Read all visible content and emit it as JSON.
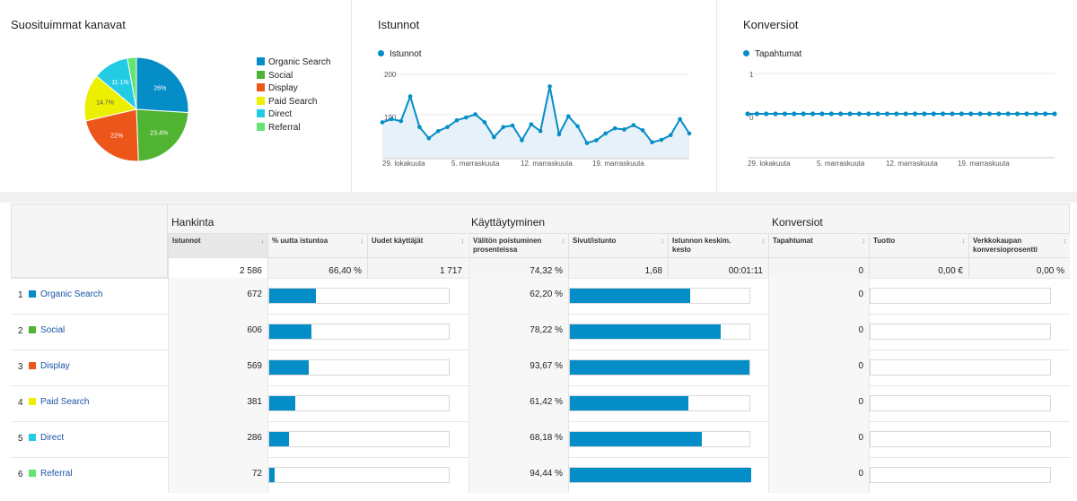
{
  "colors": {
    "organic": "#058dc7",
    "social": "#50b432",
    "display": "#ed561b",
    "paid": "#edef00",
    "direct": "#24cbe5",
    "referral": "#64e572",
    "accent": "#058dc7"
  },
  "top_channels": {
    "title": "Suosituimmat kanavat",
    "legend": [
      {
        "label": "Organic Search",
        "color": "#058dc7"
      },
      {
        "label": "Social",
        "color": "#50b432"
      },
      {
        "label": "Display",
        "color": "#ed561b"
      },
      {
        "label": "Paid Search",
        "color": "#edef00"
      },
      {
        "label": "Direct",
        "color": "#24cbe5"
      },
      {
        "label": "Referral",
        "color": "#64e572"
      }
    ]
  },
  "sessions_panel": {
    "title": "Istunnot",
    "legend": "Istunnot",
    "y_ticks": [
      "200",
      "100"
    ],
    "x_ticks": [
      "29. lokakuuta",
      "5. marraskuuta",
      "12. marraskuuta",
      "19. marraskuuta"
    ]
  },
  "conversions_panel": {
    "title": "Konversiot",
    "legend": "Tapahtumat",
    "y_ticks": [
      "1",
      "0"
    ],
    "x_ticks": [
      "29. lokakuuta",
      "5. marraskuuta",
      "12. marraskuuta",
      "19. marraskuuta"
    ]
  },
  "chart_data": [
    {
      "type": "pie",
      "categories": [
        "Organic Search",
        "Social",
        "Display",
        "Paid Search",
        "Direct",
        "Referral"
      ],
      "values": [
        26.0,
        23.4,
        22.0,
        14.7,
        11.1,
        2.8
      ],
      "labels": [
        "26%",
        "23.4%",
        "22%",
        "14.7%",
        "11.1%",
        ""
      ]
    },
    {
      "type": "line",
      "series": [
        {
          "name": "Istunnot",
          "values": [
            100,
            108,
            103,
            165,
            88,
            60,
            78,
            88,
            105,
            112,
            120,
            100,
            63,
            88,
            92,
            55,
            95,
            78,
            190,
            70,
            115,
            90,
            48,
            55,
            72,
            85,
            82,
            93,
            80,
            50,
            56,
            68,
            108,
            72
          ]
        }
      ],
      "ylim": [
        0,
        220
      ]
    },
    {
      "type": "line",
      "series": [
        {
          "name": "Tapahtumat",
          "values": [
            0,
            0,
            0,
            0,
            0,
            0,
            0,
            0,
            0,
            0,
            0,
            0,
            0,
            0,
            0,
            0,
            0,
            0,
            0,
            0,
            0,
            0,
            0,
            0,
            0,
            0,
            0,
            0,
            0,
            0,
            0,
            0,
            0,
            0
          ]
        }
      ],
      "ylim": [
        -1,
        1
      ]
    }
  ],
  "table": {
    "groups": {
      "acquisition": "Hankinta",
      "behavior": "Käyttäytyminen",
      "conversions": "Konversiot"
    },
    "columns": {
      "sessions": "Istunnot",
      "new_sessions": "% uutta istuntoa",
      "new_users": "Uudet käyttäjät",
      "bounce": "Välitön poistuminen prosenteissa",
      "pages": "Sivut/istunto",
      "duration": "Istunnon keskim. kesto",
      "transactions": "Tapahtumat",
      "revenue": "Tuotto",
      "ecommerce": "Verkkokaupan konversioprosentti"
    },
    "totals": {
      "sessions": "2 586",
      "new_sessions": "66,40 %",
      "new_users": "1 717",
      "bounce": "74,32 %",
      "pages": "1,68",
      "duration": "00:01:11",
      "transactions": "0",
      "revenue": "0,00 €",
      "ecommerce": "0,00 %"
    },
    "rows": [
      {
        "index": "1",
        "label": "Organic Search",
        "color": "#058dc7",
        "sessions": "672",
        "sessions_share": 0.26,
        "bounce": "62,20 %",
        "bounce_share": 0.662,
        "transactions": "0"
      },
      {
        "index": "2",
        "label": "Social",
        "color": "#50b432",
        "sessions": "606",
        "sessions_share": 0.234,
        "bounce": "78,22 %",
        "bounce_share": 0.832,
        "transactions": "0"
      },
      {
        "index": "3",
        "label": "Display",
        "color": "#ed561b",
        "sessions": "569",
        "sessions_share": 0.22,
        "bounce": "93,67 %",
        "bounce_share": 0.992,
        "transactions": "0"
      },
      {
        "index": "4",
        "label": "Paid Search",
        "color": "#edef00",
        "sessions": "381",
        "sessions_share": 0.147,
        "bounce": "61,42 %",
        "bounce_share": 0.654,
        "transactions": "0"
      },
      {
        "index": "5",
        "label": "Direct",
        "color": "#24cbe5",
        "sessions": "286",
        "sessions_share": 0.111,
        "bounce": "68,18 %",
        "bounce_share": 0.726,
        "transactions": "0"
      },
      {
        "index": "6",
        "label": "Referral",
        "color": "#64e572",
        "sessions": "72",
        "sessions_share": 0.028,
        "bounce": "94,44 %",
        "bounce_share": 1.0,
        "transactions": "0"
      }
    ]
  }
}
